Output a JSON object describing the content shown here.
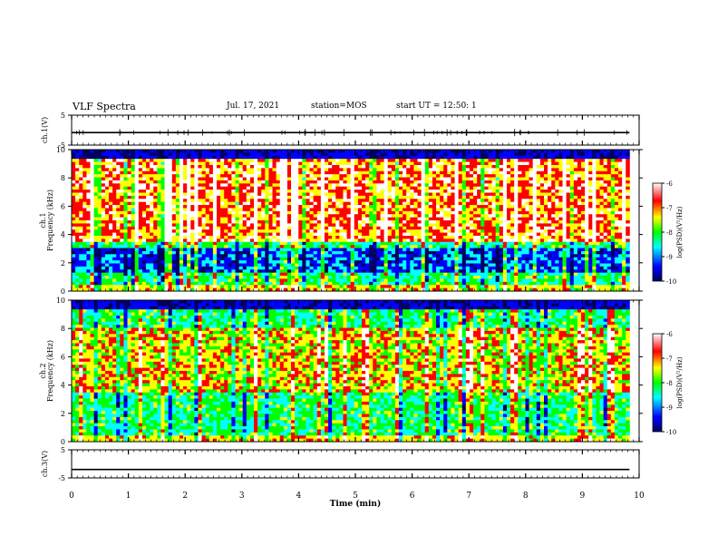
{
  "header": {
    "title": "VLF Spectra",
    "date": "Jul. 17, 2021",
    "station": "station=MOS",
    "start": "start UT = 12:50: 1"
  },
  "chart_data": {
    "type": "heatmap",
    "x_axis": {
      "label": "Time (min)",
      "range": [
        0,
        10
      ],
      "ticks": [
        "0",
        "1",
        "2",
        "3",
        "4",
        "5",
        "6",
        "7",
        "8",
        "9",
        "10"
      ]
    },
    "panels": [
      {
        "name": "ch.1(V)",
        "kind": "waveform",
        "ylabel": "ch.1(V)",
        "ylim": [
          -5,
          5
        ],
        "ticks": [
          "5",
          "-5"
        ]
      },
      {
        "name": "ch.1",
        "kind": "spectrogram",
        "ylabel_line1": "ch.1",
        "ylabel_line2": "Frequency (kHz)",
        "ylim": [
          0,
          10
        ],
        "ticks": [
          "0",
          "2",
          "4",
          "6",
          "8",
          "10"
        ],
        "colorbar": {
          "label": "log(PSD)(V²/Hz)",
          "range": [
            -10,
            -6
          ],
          "ticks": [
            "-6",
            "-7",
            "-8",
            "-9",
            "-10"
          ]
        },
        "dominant_band_khz": [
          3.5,
          9.5
        ],
        "quiet_band_khz": [
          1.2,
          3.0
        ]
      },
      {
        "name": "ch.2",
        "kind": "spectrogram",
        "ylabel_line1": "ch.2",
        "ylabel_line2": "Frequency (kHz)",
        "ylim": [
          0,
          10
        ],
        "ticks": [
          "0",
          "2",
          "4",
          "6",
          "8",
          "10"
        ],
        "colorbar": {
          "label": "log(PSD)(V²/Hz)",
          "range": [
            -10,
            -6
          ],
          "ticks": [
            "-6",
            "-7",
            "-8",
            "-9",
            "-10"
          ]
        },
        "dominant_band_khz": [
          3.5,
          8.0
        ]
      },
      {
        "name": "ch.3(V)",
        "kind": "waveform",
        "ylabel": "ch.3(V)",
        "ylim": [
          -5,
          5
        ],
        "ticks": [
          "5",
          "-5"
        ]
      }
    ],
    "colormap": [
      "#000060",
      "#0000ff",
      "#00ffff",
      "#00ff00",
      "#ffff00",
      "#ff0000",
      "#ffffff"
    ]
  }
}
